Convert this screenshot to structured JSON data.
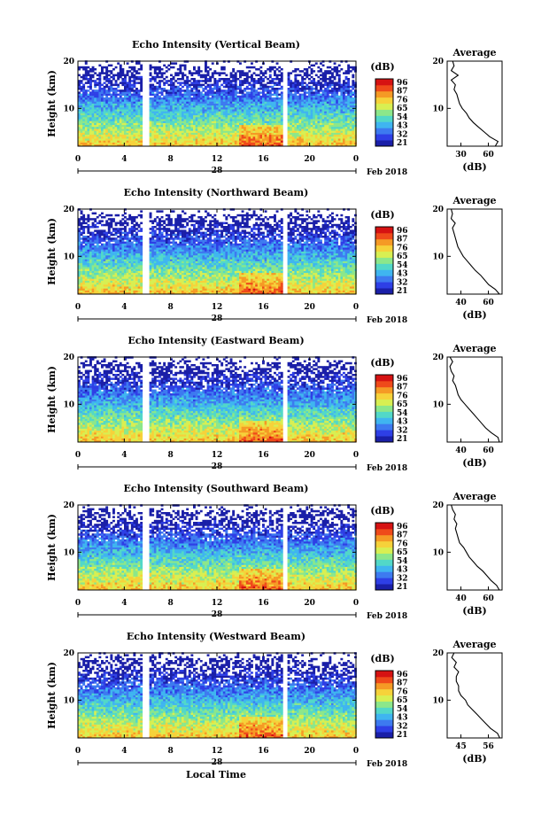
{
  "figure": {
    "xlabel": "Local Time",
    "date_label": "Feb 2018",
    "day_label": "28"
  },
  "colorbar": {
    "unit_label": "(dB)",
    "ticks": [
      "96",
      "87",
      "76",
      "65",
      "54",
      "43",
      "32",
      "21"
    ],
    "colors": [
      "#1a1fa8",
      "#2e3fe6",
      "#3d7af0",
      "#3fb5f0",
      "#52d8c8",
      "#8ce78a",
      "#d8ef52",
      "#f6d23a",
      "#f59a25",
      "#ef4a1a",
      "#d61212"
    ]
  },
  "chart_data": [
    {
      "type": "heatmap",
      "title": "Echo Intensity (Vertical Beam)",
      "ylabel": "Height (km)",
      "xticks": [
        "0",
        "4",
        "8",
        "12",
        "16",
        "20",
        "0"
      ],
      "yticks": [
        "10",
        "20"
      ],
      "xlim": [
        0,
        24
      ],
      "ylim": [
        2,
        20
      ],
      "data_gaps": [
        [
          5.5,
          6.1
        ],
        [
          17.6,
          18.1
        ]
      ],
      "colorbar_ticks": [
        "96",
        "87",
        "76",
        "65",
        "54",
        "43",
        "32",
        "21"
      ],
      "average": {
        "title": "Average",
        "xlabel": "(dB)",
        "xticks": [
          "30",
          "60"
        ],
        "yticks": [
          "10",
          "20"
        ],
        "xlim": [
          25,
          65
        ],
        "height_km": [
          2,
          3,
          4,
          5,
          6,
          7,
          8,
          9,
          10,
          11,
          12,
          13,
          14,
          15,
          16,
          17,
          18,
          19,
          20
        ],
        "values_db": [
          60,
          62,
          56,
          52,
          48,
          44,
          41,
          39,
          36,
          34,
          33,
          32,
          30,
          31,
          28,
          33,
          28,
          30,
          29
        ]
      }
    },
    {
      "type": "heatmap",
      "title": "Echo Intensity (Northward Beam)",
      "ylabel": "Height (km)",
      "xticks": [
        "0",
        "4",
        "8",
        "12",
        "16",
        "20",
        "0"
      ],
      "yticks": [
        "10",
        "20"
      ],
      "xlim": [
        0,
        24
      ],
      "ylim": [
        2,
        20
      ],
      "data_gaps": [
        [
          5.5,
          6.1
        ],
        [
          17.6,
          18.1
        ]
      ],
      "colorbar_ticks": [
        "96",
        "87",
        "76",
        "65",
        "54",
        "43",
        "32",
        "21"
      ],
      "average": {
        "title": "Average",
        "xlabel": "(dB)",
        "xticks": [
          "40",
          "60"
        ],
        "yticks": [
          "10",
          "20"
        ],
        "xlim": [
          27,
          68
        ],
        "height_km": [
          2,
          3,
          4,
          5,
          6,
          7,
          8,
          9,
          10,
          11,
          12,
          13,
          14,
          15,
          16,
          17,
          18,
          19,
          20
        ],
        "values_db": [
          66,
          63,
          58,
          55,
          52,
          48,
          45,
          42,
          39,
          37,
          35,
          34,
          33,
          32,
          31,
          33,
          30,
          31,
          30
        ]
      }
    },
    {
      "type": "heatmap",
      "title": "Echo Intensity (Eastward Beam)",
      "ylabel": "Height (km)",
      "xticks": [
        "0",
        "4",
        "8",
        "12",
        "16",
        "20",
        "0"
      ],
      "yticks": [
        "10",
        "20"
      ],
      "xlim": [
        0,
        24
      ],
      "ylim": [
        2,
        20
      ],
      "data_gaps": [
        [
          5.5,
          6.1
        ],
        [
          17.6,
          18.1
        ]
      ],
      "colorbar_ticks": [
        "96",
        "87",
        "76",
        "65",
        "54",
        "43",
        "32",
        "21"
      ],
      "average": {
        "title": "Average",
        "xlabel": "(dB)",
        "xticks": [
          "40",
          "60"
        ],
        "yticks": [
          "10",
          "20"
        ],
        "xlim": [
          28,
          68
        ],
        "height_km": [
          2,
          3,
          4,
          5,
          6,
          7,
          8,
          9,
          10,
          11,
          12,
          13,
          14,
          15,
          16,
          17,
          18,
          19,
          20
        ],
        "values_db": [
          66,
          65,
          60,
          56,
          53,
          50,
          47,
          44,
          41,
          38,
          36,
          35,
          34,
          32,
          33,
          31,
          30,
          32,
          30
        ]
      }
    },
    {
      "type": "heatmap",
      "title": "Echo Intensity (Southward Beam)",
      "ylabel": "Height (km)",
      "xticks": [
        "0",
        "4",
        "8",
        "12",
        "16",
        "20",
        "0"
      ],
      "yticks": [
        "10",
        "20"
      ],
      "xlim": [
        0,
        24
      ],
      "ylim": [
        2,
        20
      ],
      "data_gaps": [
        [
          5.5,
          6.1
        ],
        [
          17.6,
          18.1
        ]
      ],
      "colorbar_ticks": [
        "96",
        "87",
        "76",
        "65",
        "54",
        "43",
        "32",
        "21"
      ],
      "average": {
        "title": "Average",
        "xlabel": "(dB)",
        "xticks": [
          "40",
          "60"
        ],
        "yticks": [
          "10",
          "20"
        ],
        "xlim": [
          28,
          68
        ],
        "height_km": [
          2,
          3,
          4,
          5,
          6,
          7,
          8,
          9,
          10,
          11,
          12,
          13,
          14,
          15,
          16,
          17,
          18,
          19,
          20
        ],
        "values_db": [
          66,
          64,
          60,
          57,
          54,
          50,
          47,
          44,
          42,
          40,
          37,
          36,
          35,
          34,
          35,
          33,
          34,
          32,
          31
        ]
      }
    },
    {
      "type": "heatmap",
      "title": "Echo Intensity (Westward Beam)",
      "ylabel": "Height (km)",
      "xticks": [
        "0",
        "4",
        "8",
        "12",
        "16",
        "20",
        "0"
      ],
      "yticks": [
        "10",
        "20"
      ],
      "xlim": [
        0,
        24
      ],
      "ylim": [
        2,
        20
      ],
      "data_gaps": [
        [
          5.5,
          6.1
        ],
        [
          17.6,
          18.1
        ]
      ],
      "colorbar_ticks": [
        "96",
        "87",
        "76",
        "65",
        "54",
        "43",
        "32",
        "21"
      ],
      "average": {
        "title": "Average",
        "xlabel": "(dB)",
        "xticks": [
          "45",
          "56"
        ],
        "yticks": [
          "10",
          "20"
        ],
        "xlim": [
          38,
          62
        ],
        "height_km": [
          2,
          3,
          4,
          5,
          6,
          7,
          8,
          9,
          10,
          11,
          12,
          13,
          14,
          15,
          16,
          17,
          18,
          19,
          20
        ],
        "values_db": [
          61,
          60,
          57,
          55,
          53,
          51,
          49,
          47,
          46,
          44,
          43,
          43,
          42,
          42,
          43,
          41,
          42,
          40,
          41
        ]
      }
    }
  ]
}
